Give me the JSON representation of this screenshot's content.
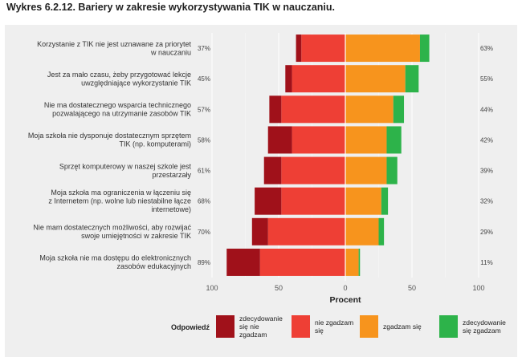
{
  "title": "Wykres 6.2.12. Bariery w zakresie wykorzystywania TIK w nauczaniu.",
  "chart_data": {
    "type": "bar",
    "orientation": "horizontal-diverging",
    "xlabel": "Procent",
    "xlim": [
      -100,
      100
    ],
    "xticks": [
      -100,
      -50,
      0,
      50,
      100
    ],
    "xtick_labels": [
      "100",
      "50",
      "0",
      "50",
      "100"
    ],
    "grid": true,
    "categories": [
      [
        "Korzystanie z TIK nie jest uznawane za priorytet",
        "w nauczaniu"
      ],
      [
        "Jest za mało czasu, żeby przygotować lekcje",
        "uwzględniające wykorzystanie TIK"
      ],
      [
        "Nie ma dostatecznego wsparcia technicznego",
        "pozwalającego na utrzymanie zasobów TIK"
      ],
      [
        "Moja szkoła nie dysponuje dostatecznym sprzętem",
        "TIK (np. komputerami)"
      ],
      [
        "Sprzęt komputerowy w naszej szkole jest",
        "przestarzały"
      ],
      [
        "Moja szkoła ma ograniczenia w łączeniu się",
        "z Internetem (np. wolne lub niestabilne łącze",
        "internetowe)"
      ],
      [
        "Nie mam dostatecznych możliwości, aby rozwijać",
        "swoje umiejętności w zakresie TIK"
      ],
      [
        "Moja szkoła nie ma dostępu do elektronicznych",
        "zasobów edukacyjnych"
      ]
    ],
    "negative_total_labels": [
      "37%",
      "45%",
      "57%",
      "58%",
      "61%",
      "68%",
      "70%",
      "89%"
    ],
    "positive_total_labels": [
      "63%",
      "55%",
      "44%",
      "42%",
      "39%",
      "32%",
      "29%",
      "11%"
    ],
    "series": [
      {
        "name": [
          "zdecydowanie",
          "się nie",
          "zgadzam"
        ],
        "side": "negative",
        "color": "#a0111a",
        "values": [
          4,
          5,
          9,
          18,
          13,
          20,
          12,
          25
        ]
      },
      {
        "name": [
          "nie zgadzam",
          "się"
        ],
        "side": "negative",
        "color": "#ee3f35",
        "values": [
          33,
          40,
          48,
          40,
          48,
          48,
          58,
          64
        ]
      },
      {
        "name": [
          "zgadzam się"
        ],
        "side": "positive",
        "color": "#f7941d",
        "values": [
          56,
          45,
          36,
          31,
          31,
          27,
          25,
          10
        ]
      },
      {
        "name": [
          "zdecydowanie",
          "się zgadzam"
        ],
        "side": "positive",
        "color": "#2db34a",
        "values": [
          7,
          10,
          8,
          11,
          8,
          5,
          4,
          1
        ]
      }
    ],
    "legend": {
      "title": "Odpowiedź",
      "placement": "bottom"
    }
  }
}
